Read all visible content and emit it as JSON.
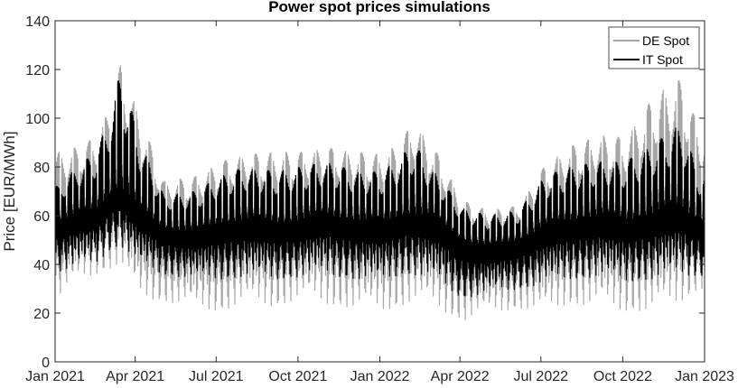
{
  "chart_data": {
    "type": "line",
    "title": "Power spot prices simulations",
    "xlabel": "",
    "ylabel": "Price [EUR/MWh]",
    "xlim": [
      "2021-01-01",
      "2023-01-01"
    ],
    "ylim": [
      0,
      140
    ],
    "x_ticks": [
      {
        "date": "2021-01-01",
        "label": "Jan 2021"
      },
      {
        "date": "2021-04-01",
        "label": "Apr 2021"
      },
      {
        "date": "2021-07-01",
        "label": "Jul 2021"
      },
      {
        "date": "2021-10-01",
        "label": "Oct 2021"
      },
      {
        "date": "2022-01-01",
        "label": "Jan 2022"
      },
      {
        "date": "2022-04-01",
        "label": "Apr 2022"
      },
      {
        "date": "2022-07-01",
        "label": "Jul 2022"
      },
      {
        "date": "2022-10-01",
        "label": "Oct 2022"
      },
      {
        "date": "2023-01-01",
        "label": "Jan 2023"
      }
    ],
    "y_ticks": [
      0,
      20,
      40,
      60,
      80,
      100,
      120,
      140
    ],
    "grid": false,
    "legend_position": "top-right",
    "series": [
      {
        "name": "DE Spot",
        "color": "#a6a6a6",
        "resolution": "weekly envelope (min / mean / max of simulated daily prices)",
        "x": [
          "2021-01-04",
          "2021-01-25",
          "2021-02-15",
          "2021-03-01",
          "2021-03-15",
          "2021-04-05",
          "2021-05-03",
          "2021-06-07",
          "2021-07-05",
          "2021-08-02",
          "2021-09-06",
          "2021-10-04",
          "2021-11-01",
          "2021-12-06",
          "2022-01-03",
          "2022-01-24",
          "2022-02-07",
          "2022-03-07",
          "2022-04-04",
          "2022-05-02",
          "2022-06-06",
          "2022-07-04",
          "2022-08-01",
          "2022-09-05",
          "2022-10-03",
          "2022-11-07",
          "2022-12-05",
          "2022-12-26"
        ],
        "min": [
          26,
          33,
          36,
          38,
          40,
          27,
          25,
          22,
          21,
          24,
          23,
          26,
          24,
          22,
          21,
          23,
          25,
          22,
          17,
          20,
          22,
          20,
          24,
          23,
          21,
          21,
          25,
          30
        ],
        "mean": [
          58,
          62,
          65,
          72,
          75,
          63,
          56,
          54,
          58,
          60,
          58,
          60,
          62,
          60,
          58,
          62,
          64,
          60,
          50,
          48,
          52,
          56,
          60,
          62,
          60,
          64,
          67,
          62
        ],
        "max": [
          86,
          88,
          92,
          103,
          122,
          102,
          74,
          76,
          82,
          85,
          86,
          86,
          88,
          86,
          85,
          90,
          99,
          85,
          66,
          62,
          64,
          80,
          88,
          93,
          92,
          110,
          116,
          95
        ]
      },
      {
        "name": "IT Spot",
        "color": "#000000",
        "resolution": "weekly envelope (min / mean / max of simulated daily prices)",
        "x": [
          "2021-01-04",
          "2021-01-25",
          "2021-02-15",
          "2021-03-01",
          "2021-03-15",
          "2021-04-05",
          "2021-05-03",
          "2021-06-07",
          "2021-07-05",
          "2021-08-02",
          "2021-09-06",
          "2021-10-04",
          "2021-11-01",
          "2021-12-06",
          "2022-01-03",
          "2022-01-24",
          "2022-02-07",
          "2022-03-07",
          "2022-04-04",
          "2022-05-02",
          "2022-06-06",
          "2022-07-04",
          "2022-08-01",
          "2022-09-05",
          "2022-10-03",
          "2022-11-07",
          "2022-12-05",
          "2022-12-26"
        ],
        "min": [
          37,
          39,
          40,
          45,
          48,
          40,
          36,
          34,
          34,
          35,
          34,
          35,
          36,
          34,
          33,
          36,
          36,
          33,
          26,
          28,
          30,
          32,
          34,
          35,
          33,
          34,
          36,
          35
        ],
        "mean": [
          58,
          60,
          62,
          68,
          72,
          62,
          55,
          53,
          57,
          58,
          57,
          58,
          60,
          58,
          57,
          60,
          61,
          58,
          50,
          47,
          50,
          55,
          58,
          60,
          58,
          61,
          63,
          58
        ],
        "max": [
          72,
          80,
          86,
          98,
          120,
          92,
          68,
          70,
          76,
          80,
          78,
          80,
          82,
          78,
          78,
          84,
          90,
          76,
          63,
          60,
          62,
          76,
          80,
          82,
          82,
          90,
          98,
          76
        ]
      }
    ]
  }
}
